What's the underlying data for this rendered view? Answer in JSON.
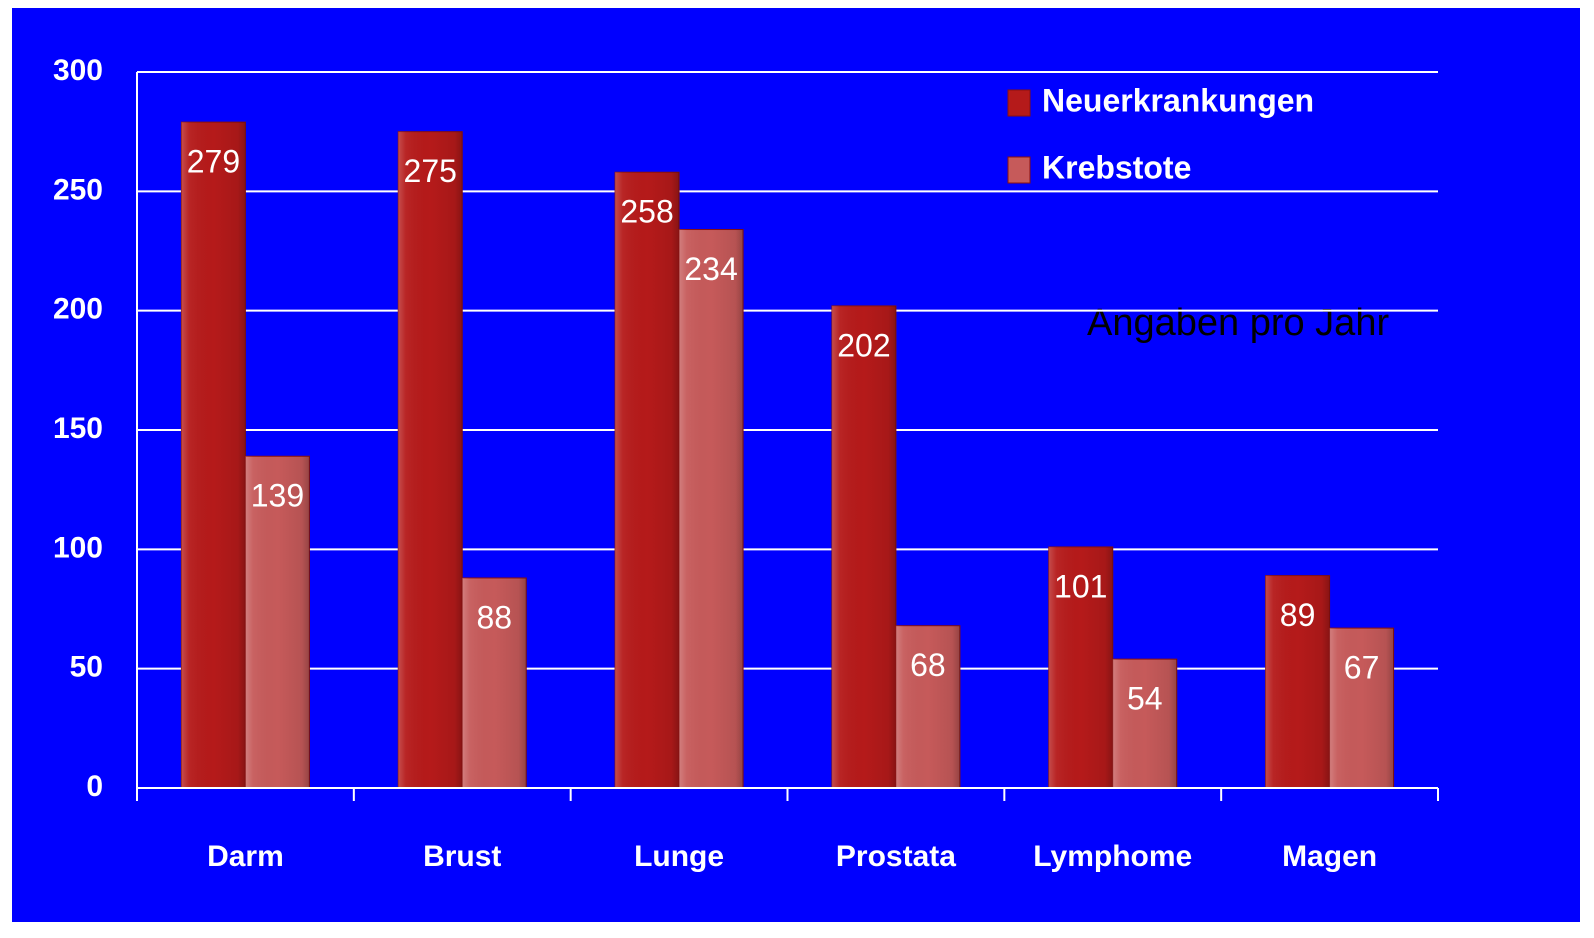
{
  "chart_data": {
    "type": "bar",
    "categories": [
      "Darm",
      "Brust",
      "Lunge",
      "Prostata",
      "Lymphome",
      "Magen"
    ],
    "series": [
      {
        "name": "Neuerkrankungen",
        "color": "#b51a1a",
        "values": [
          279,
          275,
          258,
          202,
          101,
          89
        ]
      },
      {
        "name": "Krebstote",
        "color": "#c65a5a",
        "values": [
          139,
          88,
          234,
          68,
          54,
          67
        ]
      }
    ],
    "annotation": "Angaben pro Jahr",
    "ylim": [
      0,
      300
    ],
    "yticks": [
      0,
      50,
      100,
      150,
      200,
      250,
      300
    ],
    "grid": true,
    "legend": "upper right",
    "background": "#0000ff"
  }
}
